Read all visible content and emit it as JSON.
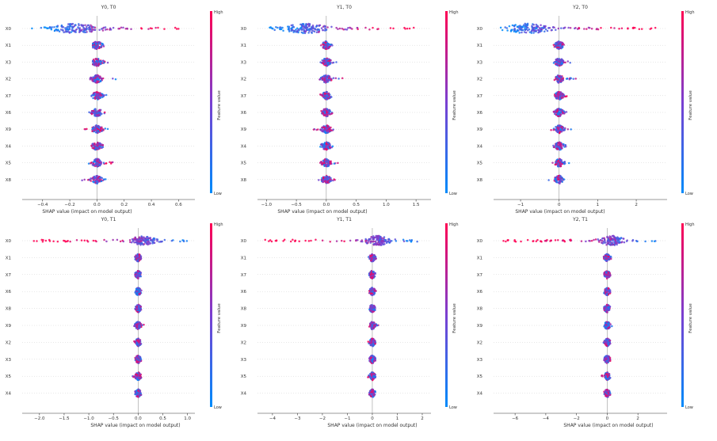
{
  "figure": {
    "colorbar": {
      "high_label": "High",
      "low_label": "Low",
      "title": "Feature value",
      "high_color": "#ff0052",
      "low_color": "#008bfb"
    },
    "xlabel": "SHAP value (impact on model output)"
  },
  "chart_data": [
    {
      "type": "scatter",
      "title": "Y0, T0",
      "xlabel": "SHAP value (impact on model output)",
      "features": [
        "X0",
        "X1",
        "X3",
        "X2",
        "X7",
        "X6",
        "X9",
        "X4",
        "X5",
        "X8"
      ],
      "xlim": [
        -0.55,
        0.72
      ],
      "xticks": [
        -0.4,
        -0.2,
        0.0,
        0.2,
        0.4,
        0.6
      ],
      "xtick_labels": [
        "−0.4",
        "−0.2",
        "0.0",
        "0.2",
        "0.4",
        "0.6"
      ],
      "spreads": [
        {
          "min": -0.48,
          "max": 0.62,
          "core": 0.09,
          "skew": -0.15
        },
        {
          "min": -0.03,
          "max": 0.05,
          "core": 0.02,
          "skew": 0
        },
        {
          "min": -0.03,
          "max": 0.09,
          "core": 0.02,
          "skew": 0
        },
        {
          "min": -0.05,
          "max": 0.14,
          "core": 0.02,
          "skew": 0
        },
        {
          "min": -0.04,
          "max": 0.07,
          "core": 0.02,
          "skew": 0
        },
        {
          "min": -0.06,
          "max": 0.06,
          "core": 0.02,
          "skew": 0
        },
        {
          "min": -0.11,
          "max": 0.11,
          "core": 0.02,
          "skew": 0
        },
        {
          "min": -0.04,
          "max": 0.07,
          "core": 0.02,
          "skew": 0
        },
        {
          "min": -0.06,
          "max": 0.12,
          "core": 0.02,
          "skew": 0
        },
        {
          "min": -0.11,
          "max": 0.09,
          "core": 0.02,
          "skew": 0
        }
      ]
    },
    {
      "type": "scatter",
      "title": "Y1, T0",
      "xlabel": "SHAP value (impact on model output)",
      "features": [
        "X0",
        "X1",
        "X3",
        "X2",
        "X7",
        "X6",
        "X9",
        "X4",
        "X5",
        "X8"
      ],
      "xlim": [
        -1.15,
        1.75
      ],
      "xticks": [
        -1.0,
        -0.5,
        0.0,
        0.5,
        1.0,
        1.5
      ],
      "xtick_labels": [
        "−1.0",
        "−0.5",
        "0.0",
        "0.5",
        "1.0",
        "1.5"
      ],
      "spreads": [
        {
          "min": -1.02,
          "max": 1.5,
          "core": 0.2,
          "skew": -0.35
        },
        {
          "min": -0.1,
          "max": 0.1,
          "core": 0.04,
          "skew": 0
        },
        {
          "min": -0.1,
          "max": 0.2,
          "core": 0.04,
          "skew": 0
        },
        {
          "min": -0.12,
          "max": 0.28,
          "core": 0.04,
          "skew": 0
        },
        {
          "min": -0.1,
          "max": 0.12,
          "core": 0.04,
          "skew": 0
        },
        {
          "min": -0.12,
          "max": 0.12,
          "core": 0.04,
          "skew": 0
        },
        {
          "min": -0.22,
          "max": 0.22,
          "core": 0.04,
          "skew": 0
        },
        {
          "min": -0.1,
          "max": 0.12,
          "core": 0.04,
          "skew": 0
        },
        {
          "min": -0.12,
          "max": 0.25,
          "core": 0.04,
          "skew": 0
        },
        {
          "min": -0.2,
          "max": 0.16,
          "core": 0.04,
          "skew": 0
        }
      ]
    },
    {
      "type": "scatter",
      "title": "Y2, T0",
      "xlabel": "SHAP value (impact on model output)",
      "features": [
        "X0",
        "X1",
        "X3",
        "X2",
        "X7",
        "X6",
        "X9",
        "X4",
        "X5",
        "X8"
      ],
      "xlim": [
        -1.7,
        2.8
      ],
      "xticks": [
        -1,
        0,
        1,
        2
      ],
      "xtick_labels": [
        "−1",
        "0",
        "1",
        "2"
      ],
      "spreads": [
        {
          "min": -1.55,
          "max": 2.5,
          "core": 0.3,
          "skew": -0.8
        },
        {
          "min": -0.2,
          "max": 0.15,
          "core": 0.06,
          "skew": 0
        },
        {
          "min": -0.15,
          "max": 0.3,
          "core": 0.06,
          "skew": 0
        },
        {
          "min": -0.15,
          "max": 0.45,
          "core": 0.06,
          "skew": 0
        },
        {
          "min": -0.15,
          "max": 0.2,
          "core": 0.06,
          "skew": 0
        },
        {
          "min": -0.2,
          "max": 0.2,
          "core": 0.06,
          "skew": 0
        },
        {
          "min": -0.35,
          "max": 0.35,
          "core": 0.06,
          "skew": 0
        },
        {
          "min": -0.15,
          "max": 0.2,
          "core": 0.06,
          "skew": 0
        },
        {
          "min": -0.2,
          "max": 0.35,
          "core": 0.06,
          "skew": 0
        },
        {
          "min": -0.35,
          "max": 0.25,
          "core": 0.06,
          "skew": 0
        }
      ]
    },
    {
      "type": "scatter",
      "title": "Y0, T1",
      "xlabel": "SHAP value (impact on model output)",
      "features": [
        "X0",
        "X1",
        "X7",
        "X6",
        "X8",
        "X9",
        "X2",
        "X3",
        "X5",
        "X4"
      ],
      "xlim": [
        -2.35,
        1.15
      ],
      "xticks": [
        -2.0,
        -1.5,
        -1.0,
        -0.5,
        0.0,
        0.5,
        1.0
      ],
      "xtick_labels": [
        "−2.0",
        "−1.5",
        "−1.0",
        "−0.5",
        "0.0",
        "0.5",
        "1.0"
      ],
      "spreads": [
        {
          "min": -2.2,
          "max": 1.05,
          "core": 0.12,
          "skew": 0.1
        },
        {
          "min": -0.08,
          "max": 0.08,
          "core": 0.03,
          "skew": 0
        },
        {
          "min": -0.06,
          "max": 0.06,
          "core": 0.03,
          "skew": 0
        },
        {
          "min": -0.06,
          "max": 0.08,
          "core": 0.03,
          "skew": 0
        },
        {
          "min": -0.06,
          "max": 0.06,
          "core": 0.03,
          "skew": 0
        },
        {
          "min": -0.08,
          "max": 0.12,
          "core": 0.03,
          "skew": 0
        },
        {
          "min": -0.08,
          "max": 0.06,
          "core": 0.03,
          "skew": 0
        },
        {
          "min": -0.06,
          "max": 0.06,
          "core": 0.03,
          "skew": 0
        },
        {
          "min": -0.12,
          "max": 0.06,
          "core": 0.03,
          "skew": 0
        },
        {
          "min": -0.06,
          "max": 0.06,
          "core": 0.03,
          "skew": 0
        }
      ]
    },
    {
      "type": "scatter",
      "title": "Y1, T1",
      "xlabel": "SHAP value (impact on model output)",
      "features": [
        "X0",
        "X1",
        "X7",
        "X6",
        "X8",
        "X9",
        "X2",
        "X3",
        "X5",
        "X4"
      ],
      "xlim": [
        -4.6,
        2.35
      ],
      "xticks": [
        -4,
        -3,
        -2,
        -1,
        0,
        1,
        2
      ],
      "xtick_labels": [
        "−4",
        "−3",
        "−2",
        "−1",
        "0",
        "1",
        "2"
      ],
      "spreads": [
        {
          "min": -4.3,
          "max": 2.1,
          "core": 0.25,
          "skew": 0.2
        },
        {
          "min": -0.15,
          "max": 0.15,
          "core": 0.06,
          "skew": 0
        },
        {
          "min": -0.12,
          "max": 0.12,
          "core": 0.06,
          "skew": 0
        },
        {
          "min": -0.12,
          "max": 0.15,
          "core": 0.06,
          "skew": 0
        },
        {
          "min": -0.12,
          "max": 0.12,
          "core": 0.06,
          "skew": 0
        },
        {
          "min": -0.15,
          "max": 0.25,
          "core": 0.06,
          "skew": 0
        },
        {
          "min": -0.2,
          "max": 0.12,
          "core": 0.06,
          "skew": 0
        },
        {
          "min": -0.12,
          "max": 0.12,
          "core": 0.06,
          "skew": 0
        },
        {
          "min": -0.25,
          "max": 0.12,
          "core": 0.06,
          "skew": 0
        },
        {
          "min": -0.12,
          "max": 0.12,
          "core": 0.06,
          "skew": 0
        }
      ]
    },
    {
      "type": "scatter",
      "title": "Y2, T1",
      "xlabel": "SHAP value (impact on model output)",
      "features": [
        "X0",
        "X1",
        "X7",
        "X6",
        "X8",
        "X9",
        "X2",
        "X3",
        "X5",
        "X4"
      ],
      "xlim": [
        -7.4,
        3.9
      ],
      "xticks": [
        -6,
        -4,
        -2,
        0,
        2
      ],
      "xtick_labels": [
        "−6",
        "−4",
        "−2",
        "0",
        "2"
      ],
      "spreads": [
        {
          "min": -6.8,
          "max": 3.3,
          "core": 0.4,
          "skew": 0.3
        },
        {
          "min": -0.25,
          "max": 0.25,
          "core": 0.1,
          "skew": 0
        },
        {
          "min": -0.2,
          "max": 0.2,
          "core": 0.1,
          "skew": 0
        },
        {
          "min": -0.2,
          "max": 0.25,
          "core": 0.1,
          "skew": 0
        },
        {
          "min": -0.2,
          "max": 0.2,
          "core": 0.1,
          "skew": 0
        },
        {
          "min": -0.25,
          "max": 0.4,
          "core": 0.1,
          "skew": 0
        },
        {
          "min": -0.3,
          "max": 0.2,
          "core": 0.1,
          "skew": 0
        },
        {
          "min": -0.2,
          "max": 0.2,
          "core": 0.1,
          "skew": 0
        },
        {
          "min": -0.4,
          "max": 0.2,
          "core": 0.1,
          "skew": 0
        },
        {
          "min": -0.2,
          "max": 0.2,
          "core": 0.1,
          "skew": 0
        }
      ]
    }
  ]
}
